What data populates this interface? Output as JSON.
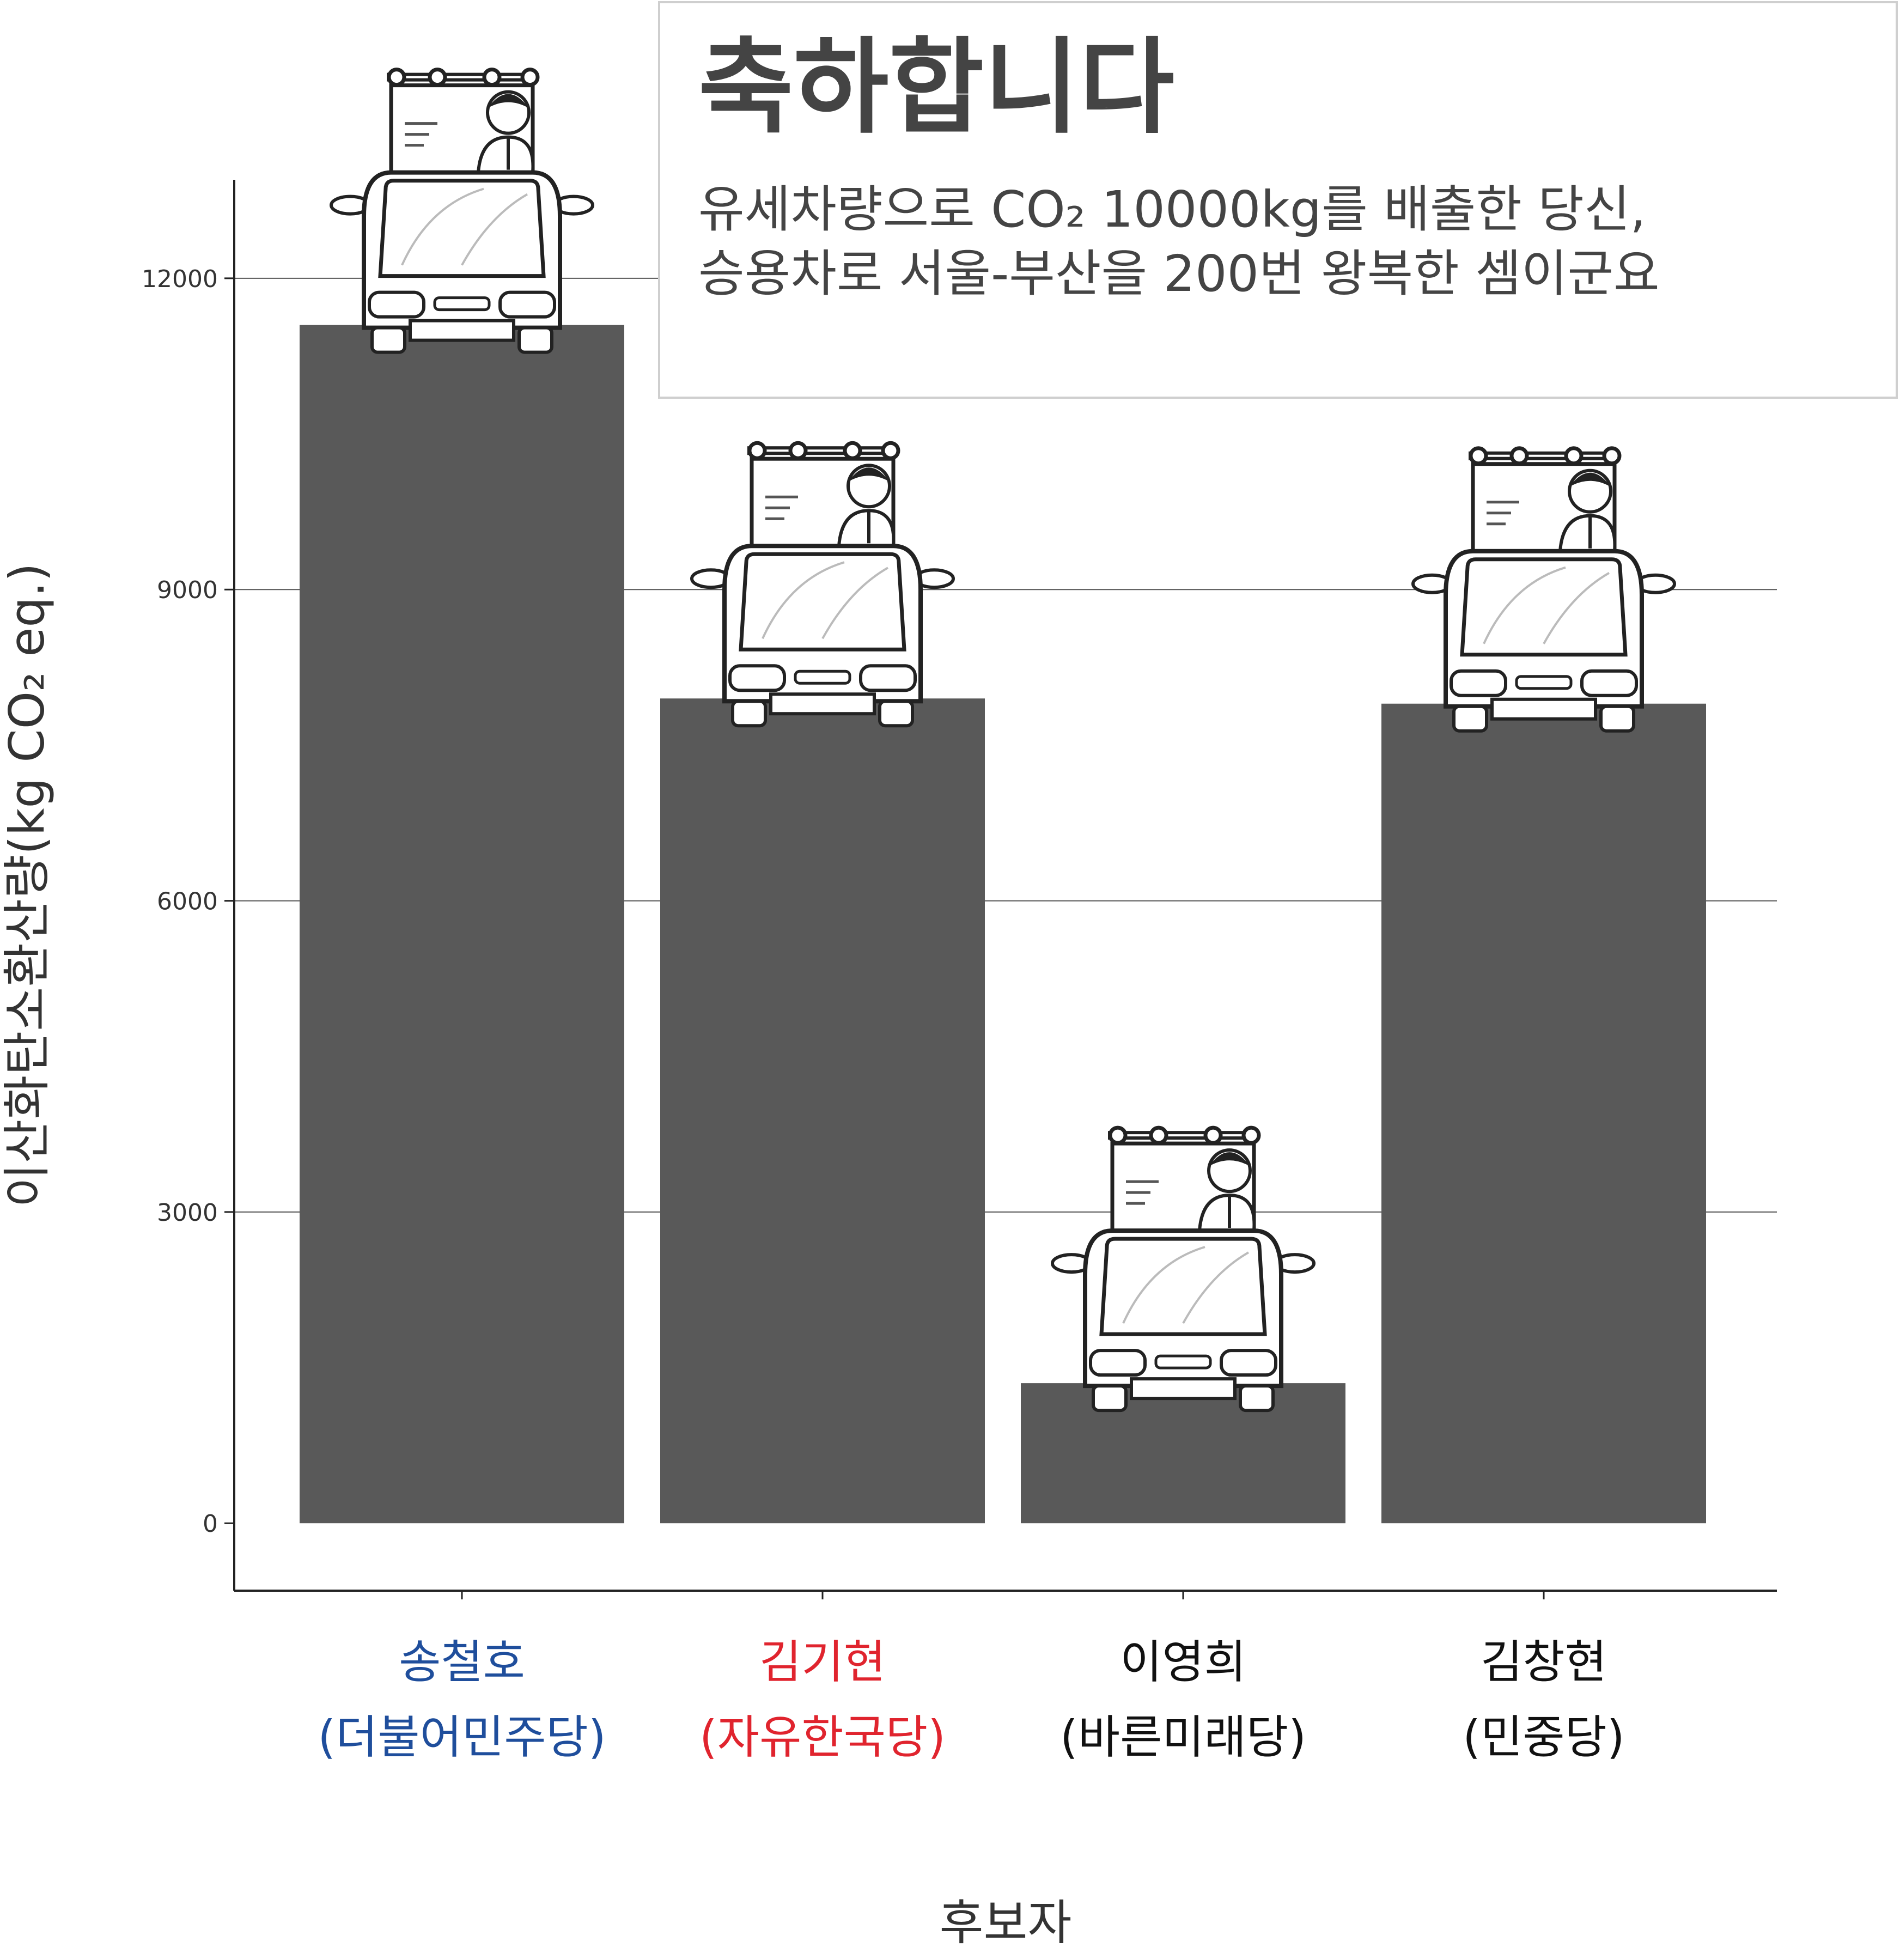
{
  "callout": {
    "title": "축하합니다",
    "line1": "유세차량으로 CO₂ 10000kg를 배출한 당신,",
    "line2": "승용차로 서울-부산을 200번 왕복한 셈이군요"
  },
  "chart_data": {
    "type": "bar",
    "categories": [
      "송철호",
      "김기현",
      "이영희",
      "김창현"
    ],
    "subcategories": [
      "(더불어민주당)",
      "(자유한국당)",
      "(바른미래당)",
      "(민중당)"
    ],
    "category_colors": [
      "#1f4e9c",
      "#e0242e",
      "#111111",
      "#111111"
    ],
    "values": [
      11550,
      7950,
      1350,
      7900
    ],
    "bar_color": "#595959",
    "ylabel": "이산화탄소환산량(kg CO₂ eq.)",
    "xlabel": "후보자",
    "ylim": [
      -650,
      12950
    ],
    "yticks": [
      0,
      3000,
      6000,
      9000,
      12000
    ],
    "grid": true,
    "bar_decoration": "campaign-truck-icon"
  }
}
